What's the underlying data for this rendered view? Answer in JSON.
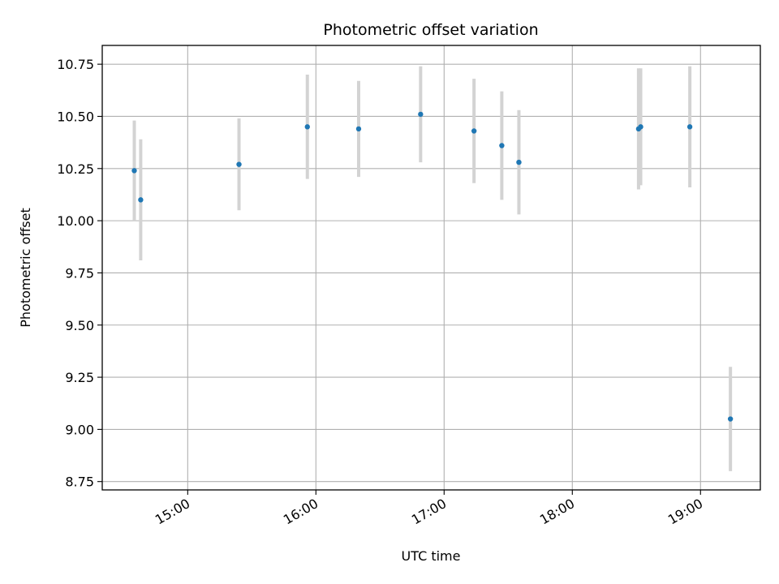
{
  "chart_data": {
    "type": "scatter",
    "title": "Photometric offset variation",
    "xlabel": "UTC time",
    "ylabel": "Photometric offset",
    "x_unit": "UTC time (HH:MM)",
    "xlim": [
      "14:20",
      "19:28"
    ],
    "ylim": [
      8.71,
      10.84
    ],
    "grid": true,
    "marker_color": "#1f77b4",
    "errorbar_color": "#d3d3d3",
    "x_ticks": [
      "15:00",
      "16:00",
      "17:00",
      "18:00",
      "19:00"
    ],
    "y_ticks": [
      "8.75",
      "9.00",
      "9.25",
      "9.50",
      "9.75",
      "10.00",
      "10.25",
      "10.50",
      "10.75"
    ],
    "points": [
      {
        "x": "14:35",
        "y": 10.24,
        "yerr": 0.24
      },
      {
        "x": "14:38",
        "y": 10.1,
        "yerr": 0.29
      },
      {
        "x": "15:24",
        "y": 10.27,
        "yerr": 0.22
      },
      {
        "x": "15:56",
        "y": 10.45,
        "yerr": 0.25
      },
      {
        "x": "16:20",
        "y": 10.44,
        "yerr": 0.23
      },
      {
        "x": "16:49",
        "y": 10.51,
        "yerr": 0.23
      },
      {
        "x": "17:14",
        "y": 10.43,
        "yerr": 0.25
      },
      {
        "x": "17:27",
        "y": 10.36,
        "yerr": 0.26
      },
      {
        "x": "17:35",
        "y": 10.28,
        "yerr": 0.25
      },
      {
        "x": "18:31",
        "y": 10.44,
        "yerr": 0.29
      },
      {
        "x": "18:32",
        "y": 10.45,
        "yerr": 0.28
      },
      {
        "x": "18:55",
        "y": 10.45,
        "yerr": 0.29
      },
      {
        "x": "19:14",
        "y": 9.05,
        "yerr": 0.25
      }
    ]
  }
}
